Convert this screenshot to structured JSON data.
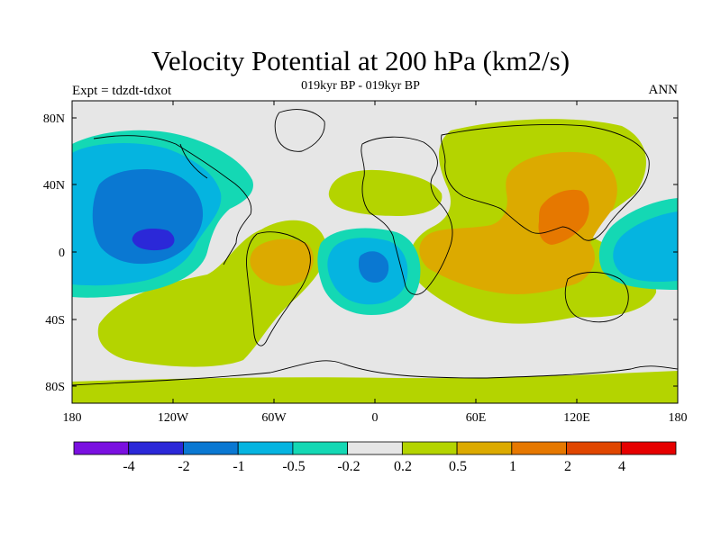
{
  "header": {
    "title": "Velocity Potential at 200 hPa (km2/s)",
    "subtitle": "019kyr BP - 019kyr BP",
    "left_label": "Expt = tdzdt-tdxot",
    "right_label": "ANN"
  },
  "map": {
    "projection": "cylindrical-equidistant",
    "lon_range": [
      -180,
      180
    ],
    "lat_range": [
      -90,
      90
    ],
    "x_ticks": [
      "180",
      "120W",
      "60W",
      "0",
      "60E",
      "120E",
      "180"
    ],
    "y_ticks": [
      "80N",
      "40N",
      "0",
      "40S",
      "80S"
    ],
    "background_color": "#e6e6e6",
    "coastlines": true
  },
  "colorbar": {
    "labels": [
      "-4",
      "-2",
      "-1",
      "-0.5",
      "-0.2",
      "0.2",
      "0.5",
      "1",
      "2",
      "4"
    ],
    "colors": [
      "#7a10e0",
      "#2b28d8",
      "#0a78d2",
      "#05b4e0",
      "#14d8b4",
      "#e6e6e6",
      "#b4d400",
      "#dcaa00",
      "#e67800",
      "#e04600",
      "#e60000"
    ]
  },
  "regions": [
    {
      "level": "-0.2",
      "color": "#14d8b4",
      "desc": "NE Pacific / North America"
    },
    {
      "level": "-0.5",
      "color": "#05b4e0",
      "desc": "NE Pacific"
    },
    {
      "level": "-1",
      "color": "#0a78d2",
      "desc": "NE Pacific"
    },
    {
      "level": "-2",
      "color": "#2b28d8",
      "desc": "NE Pacific core"
    },
    {
      "level": "-0.2",
      "color": "#14d8b4",
      "desc": "South Atlantic"
    },
    {
      "level": "-0.5",
      "color": "#05b4e0",
      "desc": "South Atlantic"
    },
    {
      "level": "-1",
      "color": "#0a78d2",
      "desc": "South Atlantic core"
    },
    {
      "level": "-0.2",
      "color": "#14d8b4",
      "desc": "West Pacific"
    },
    {
      "level": "-0.5",
      "color": "#05b4e0",
      "desc": "West Pacific"
    },
    {
      "level": "0.2",
      "color": "#b4d400",
      "desc": "Eurasia / Africa"
    },
    {
      "level": "0.5",
      "color": "#dcaa00",
      "desc": "Africa / Asia"
    },
    {
      "level": "1",
      "color": "#e67800",
      "desc": "East Asia"
    },
    {
      "level": "0.2",
      "color": "#b4d400",
      "desc": "South America / South Pacific"
    },
    {
      "level": "0.5",
      "color": "#dcaa00",
      "desc": "South America"
    },
    {
      "level": "0.2",
      "color": "#b4d400",
      "desc": "North Atlantic"
    },
    {
      "level": "0.2",
      "color": "#b4d400",
      "desc": "Southern Ocean band"
    }
  ]
}
